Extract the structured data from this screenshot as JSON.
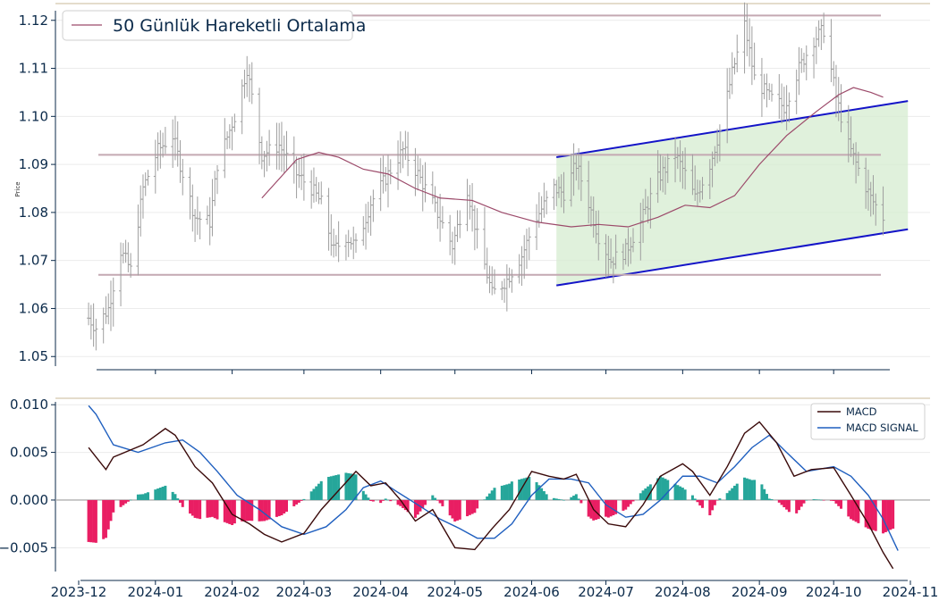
{
  "chart_data": [
    {
      "type": "line",
      "panel": "price",
      "ylabel": "Price",
      "ylim": [
        1.048,
        1.122
      ],
      "yticks": [
        1.05,
        1.06,
        1.07,
        1.08,
        1.09,
        1.1,
        1.11,
        1.12
      ],
      "ytick_labels": [
        "1.05",
        "1.06",
        "1.07",
        "1.08",
        "1.09",
        "1.10",
        "1.11",
        "1.12"
      ],
      "grid": true,
      "legend_position": "top-left",
      "legend": [
        "50 Günlük Hareketli Ortalama"
      ],
      "colors": {
        "bars": "#9e9e9e",
        "sma": "#9c4a6a",
        "levels": "#c4a9b2",
        "channel": "#1414c8",
        "channel_fill": "#d6ecd0"
      },
      "horizontal_levels": [
        1.121,
        1.092,
        1.067
      ],
      "ohlc": {
        "start_date": "2023-12-05",
        "start_close": 1.058,
        "closes_step_note": "",
        "anchors": [
          [
            "2023-12-05",
            1.058
          ],
          [
            "2023-12-08",
            1.056
          ],
          [
            "2023-12-13",
            1.06
          ],
          [
            "2023-12-18",
            1.072
          ],
          [
            "2023-12-22",
            1.068
          ],
          [
            "2023-12-27",
            1.085
          ],
          [
            "2024-01-02",
            1.093
          ],
          [
            "2024-01-08",
            1.096
          ],
          [
            "2024-01-11",
            1.09
          ],
          [
            "2024-01-17",
            1.079
          ],
          [
            "2024-01-23",
            1.078
          ],
          [
            "2024-01-26",
            1.09
          ],
          [
            "2024-02-02",
            1.1
          ],
          [
            "2024-02-07",
            1.11
          ],
          [
            "2024-02-13",
            1.092
          ],
          [
            "2024-02-20",
            1.094
          ],
          [
            "2024-02-27",
            1.088
          ],
          [
            "2024-03-04",
            1.085
          ],
          [
            "2024-03-08",
            1.082
          ],
          [
            "2024-03-13",
            1.072
          ],
          [
            "2024-03-18",
            1.075
          ],
          [
            "2024-03-22",
            1.073
          ],
          [
            "2024-03-28",
            1.082
          ],
          [
            "2024-04-04",
            1.088
          ],
          [
            "2024-04-10",
            1.093
          ],
          [
            "2024-04-16",
            1.088
          ],
          [
            "2024-04-22",
            1.082
          ],
          [
            "2024-04-30",
            1.073
          ],
          [
            "2024-05-06",
            1.085
          ],
          [
            "2024-05-10",
            1.075
          ],
          [
            "2024-05-16",
            1.063
          ],
          [
            "2024-05-22",
            1.066
          ],
          [
            "2024-05-28",
            1.071
          ],
          [
            "2024-06-03",
            1.079
          ],
          [
            "2024-06-10",
            1.085
          ],
          [
            "2024-06-14",
            1.084
          ],
          [
            "2024-06-19",
            1.09
          ],
          [
            "2024-06-24",
            1.082
          ],
          [
            "2024-06-28",
            1.075
          ],
          [
            "2024-07-03",
            1.07
          ],
          [
            "2024-07-09",
            1.072
          ],
          [
            "2024-07-15",
            1.078
          ],
          [
            "2024-07-22",
            1.087
          ],
          [
            "2024-07-29",
            1.092
          ],
          [
            "2024-08-02",
            1.088
          ],
          [
            "2024-08-06",
            1.083
          ],
          [
            "2024-08-12",
            1.09
          ],
          [
            "2024-08-16",
            1.097
          ],
          [
            "2024-08-21",
            1.109
          ],
          [
            "2024-08-26",
            1.119
          ],
          [
            "2024-08-30",
            1.108
          ],
          [
            "2024-09-05",
            1.104
          ],
          [
            "2024-09-11",
            1.102
          ],
          [
            "2024-09-17",
            1.11
          ],
          [
            "2024-09-23",
            1.116
          ],
          [
            "2024-09-27",
            1.118
          ],
          [
            "2024-10-02",
            1.104
          ],
          [
            "2024-10-07",
            1.094
          ],
          [
            "2024-10-11",
            1.089
          ],
          [
            "2024-10-16",
            1.083
          ],
          [
            "2024-10-21",
            1.079
          ]
        ]
      },
      "sma50": [
        [
          "2024-02-13",
          1.083
        ],
        [
          "2024-02-20",
          1.087
        ],
        [
          "2024-02-27",
          1.091
        ],
        [
          "2024-03-07",
          1.0925
        ],
        [
          "2024-03-15",
          1.0915
        ],
        [
          "2024-03-25",
          1.089
        ],
        [
          "2024-04-04",
          1.088
        ],
        [
          "2024-04-15",
          1.085
        ],
        [
          "2024-04-25",
          1.083
        ],
        [
          "2024-05-08",
          1.0825
        ],
        [
          "2024-05-20",
          1.08
        ],
        [
          "2024-06-03",
          1.078
        ],
        [
          "2024-06-17",
          1.077
        ],
        [
          "2024-06-28",
          1.0775
        ],
        [
          "2024-07-10",
          1.077
        ],
        [
          "2024-07-22",
          1.079
        ],
        [
          "2024-08-02",
          1.0815
        ],
        [
          "2024-08-12",
          1.081
        ],
        [
          "2024-08-22",
          1.0835
        ],
        [
          "2024-09-01",
          1.09
        ],
        [
          "2024-09-12",
          1.096
        ],
        [
          "2024-09-24",
          1.101
        ],
        [
          "2024-10-03",
          1.1045
        ],
        [
          "2024-10-09",
          1.106
        ],
        [
          "2024-10-16",
          1.105
        ],
        [
          "2024-10-21",
          1.104
        ]
      ],
      "channel": {
        "start_date": "2024-06-11",
        "end_date": "2024-10-31",
        "upper": [
          1.0915,
          1.1032
        ],
        "lower": [
          1.0648,
          1.0765
        ]
      }
    },
    {
      "type": "line",
      "panel": "macd",
      "ylim": [
        -0.0075,
        0.0103
      ],
      "yticks": [
        -0.005,
        0.0,
        0.005,
        0.01
      ],
      "ytick_labels": [
        "−0.005",
        "0.000",
        "0.005",
        "0.010"
      ],
      "grid": true,
      "legend_position": "top-right",
      "xticks": [
        "2023-12-01",
        "2024-01-01",
        "2024-02-01",
        "2024-03-01",
        "2024-04-01",
        "2024-05-01",
        "2024-06-01",
        "2024-07-01",
        "2024-08-01",
        "2024-09-01",
        "2024-10-01",
        "2024-11-01"
      ],
      "xtick_labels": [
        "2023-12",
        "2024-01",
        "2024-02",
        "2024-03",
        "2024-04",
        "2024-05",
        "2024-06",
        "2024-07",
        "2024-08",
        "2024-09",
        "2024-10",
        "2024-11"
      ],
      "colors": {
        "macd": "#3a0a0a",
        "signal": "#1f5fbf",
        "hist_pos": "#26a69a",
        "hist_neg": "#e91e63"
      },
      "series": [
        {
          "name": "MACD",
          "points": [
            [
              "2023-12-05",
              0.0055
            ],
            [
              "2023-12-12",
              0.0032
            ],
            [
              "2023-12-15",
              0.0045
            ],
            [
              "2023-12-27",
              0.0058
            ],
            [
              "2024-01-05",
              0.0075
            ],
            [
              "2024-01-09",
              0.0068
            ],
            [
              "2024-01-17",
              0.0035
            ],
            [
              "2024-01-24",
              0.0018
            ],
            [
              "2024-02-01",
              -0.0015
            ],
            [
              "2024-02-08",
              -0.0025
            ],
            [
              "2024-02-14",
              -0.0036
            ],
            [
              "2024-02-21",
              -0.0044
            ],
            [
              "2024-03-01",
              -0.0035
            ],
            [
              "2024-03-08",
              -0.001
            ],
            [
              "2024-03-15",
              0.001
            ],
            [
              "2024-03-22",
              0.003
            ],
            [
              "2024-03-28",
              0.0015
            ],
            [
              "2024-04-03",
              0.0018
            ],
            [
              "2024-04-09",
              0.0
            ],
            [
              "2024-04-15",
              -0.0022
            ],
            [
              "2024-04-22",
              -0.001
            ],
            [
              "2024-05-01",
              -0.005
            ],
            [
              "2024-05-09",
              -0.0052
            ],
            [
              "2024-05-16",
              -0.003
            ],
            [
              "2024-05-23",
              -0.001
            ],
            [
              "2024-06-01",
              0.003
            ],
            [
              "2024-06-08",
              0.0025
            ],
            [
              "2024-06-14",
              0.0022
            ],
            [
              "2024-06-19",
              0.0027
            ],
            [
              "2024-06-26",
              -0.001
            ],
            [
              "2024-07-02",
              -0.0025
            ],
            [
              "2024-07-09",
              -0.0028
            ],
            [
              "2024-07-16",
              -0.0005
            ],
            [
              "2024-07-23",
              0.0025
            ],
            [
              "2024-08-01",
              0.0038
            ],
            [
              "2024-08-05",
              0.003
            ],
            [
              "2024-08-12",
              0.0005
            ],
            [
              "2024-08-19",
              0.0035
            ],
            [
              "2024-08-26",
              0.007
            ],
            [
              "2024-09-01",
              0.0082
            ],
            [
              "2024-09-08",
              0.006
            ],
            [
              "2024-09-15",
              0.0025
            ],
            [
              "2024-09-22",
              0.0032
            ],
            [
              "2024-10-01",
              0.0034
            ],
            [
              "2024-10-08",
              0.0005
            ],
            [
              "2024-10-15",
              -0.0025
            ],
            [
              "2024-10-21",
              -0.0055
            ],
            [
              "2024-10-25",
              -0.0072
            ]
          ]
        },
        {
          "name": "MACD SIGNAL",
          "points": [
            [
              "2023-12-05",
              0.0099
            ],
            [
              "2023-12-08",
              0.009
            ],
            [
              "2023-12-15",
              0.0058
            ],
            [
              "2023-12-25",
              0.005
            ],
            [
              "2024-01-05",
              0.006
            ],
            [
              "2024-01-12",
              0.0063
            ],
            [
              "2024-01-19",
              0.005
            ],
            [
              "2024-01-26",
              0.003
            ],
            [
              "2024-02-03",
              0.0005
            ],
            [
              "2024-02-12",
              -0.001
            ],
            [
              "2024-02-21",
              -0.0028
            ],
            [
              "2024-03-01",
              -0.0036
            ],
            [
              "2024-03-10",
              -0.0028
            ],
            [
              "2024-03-18",
              -0.001
            ],
            [
              "2024-03-25",
              0.0013
            ],
            [
              "2024-04-01",
              0.002
            ],
            [
              "2024-04-08",
              0.0008
            ],
            [
              "2024-04-16",
              -0.0005
            ],
            [
              "2024-04-25",
              -0.002
            ],
            [
              "2024-05-03",
              -0.003
            ],
            [
              "2024-05-10",
              -0.004
            ],
            [
              "2024-05-17",
              -0.004
            ],
            [
              "2024-05-24",
              -0.0025
            ],
            [
              "2024-06-01",
              0.0005
            ],
            [
              "2024-06-08",
              0.0022
            ],
            [
              "2024-06-17",
              0.0022
            ],
            [
              "2024-06-24",
              0.0018
            ],
            [
              "2024-07-01",
              -0.0005
            ],
            [
              "2024-07-09",
              -0.0018
            ],
            [
              "2024-07-16",
              -0.0015
            ],
            [
              "2024-07-23",
              0.0
            ],
            [
              "2024-08-01",
              0.0025
            ],
            [
              "2024-08-08",
              0.0025
            ],
            [
              "2024-08-15",
              0.0018
            ],
            [
              "2024-08-22",
              0.0035
            ],
            [
              "2024-08-29",
              0.0055
            ],
            [
              "2024-09-05",
              0.0068
            ],
            [
              "2024-09-12",
              0.005
            ],
            [
              "2024-09-20",
              0.003
            ],
            [
              "2024-10-01",
              0.0035
            ],
            [
              "2024-10-08",
              0.0025
            ],
            [
              "2024-10-15",
              0.0005
            ],
            [
              "2024-10-21",
              -0.002
            ],
            [
              "2024-10-27",
              -0.0053
            ]
          ]
        }
      ]
    }
  ]
}
